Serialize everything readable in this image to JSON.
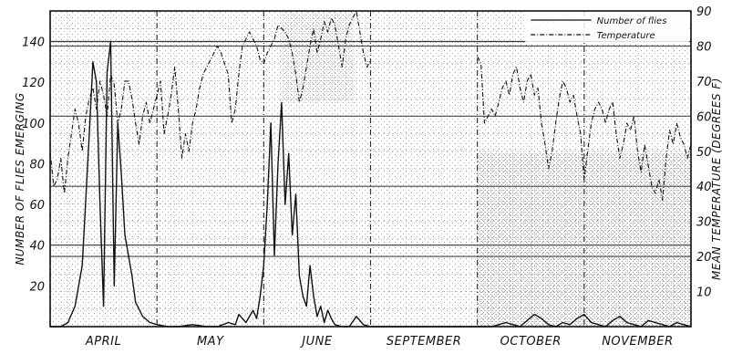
{
  "chart_data": {
    "type": "line",
    "title": "",
    "xlabel": "",
    "ylabel_left": "NUMBER OF FLIES EMERGING",
    "ylabel_right": "MEAN TEMPERATURE (DEGREES F)",
    "months": [
      "APRIL",
      "MAY",
      "JUNE",
      "SEPTEMBER",
      "OCTOBER",
      "NOVEMBER"
    ],
    "y_left_ticks": [
      "20",
      "40",
      "60",
      "80",
      "100",
      "120",
      "140"
    ],
    "y_right_ticks": [
      "10",
      "20",
      "30",
      "40",
      "50",
      "60",
      "70",
      "80",
      "90"
    ],
    "y_left_lim": [
      0,
      155
    ],
    "y_right_lim": [
      0,
      90
    ],
    "grid": true,
    "legend_position": "top-right",
    "legend": [
      "Number of flies",
      "Temperature"
    ],
    "x_unit": "day index across the six months shown (about 30 days per month panel)",
    "series": [
      {
        "name": "Number of flies",
        "axis": "left",
        "style": "solid",
        "segments": [
          {
            "x": [
              0,
              3,
              5,
              7,
              9,
              11,
              12,
              13,
              14,
              15,
              16,
              17,
              18,
              19,
              20,
              21,
              22,
              23,
              24,
              26,
              28,
              30,
              33,
              36,
              40,
              44,
              47,
              50,
              52,
              53,
              55,
              57,
              58,
              59,
              60,
              61,
              62,
              63,
              64,
              65,
              66,
              67,
              68,
              69,
              70,
              71,
              72,
              73,
              74,
              75,
              76,
              77,
              78,
              79,
              80,
              82,
              84,
              86,
              88,
              90
            ],
            "y": [
              0,
              0,
              2,
              10,
              30,
              95,
              130,
              120,
              60,
              10,
              125,
              140,
              20,
              100,
              75,
              45,
              35,
              25,
              12,
              5,
              2,
              1,
              0,
              0,
              1,
              0,
              0,
              2,
              1,
              6,
              2,
              8,
              4,
              15,
              30,
              60,
              100,
              35,
              80,
              110,
              60,
              85,
              45,
              65,
              25,
              15,
              10,
              30,
              15,
              5,
              10,
              2,
              8,
              4,
              1,
              0,
              0,
              5,
              1,
              0
            ]
          },
          {
            "x": [
              90,
              95,
              100,
              105,
              110,
              115,
              118,
              120
            ],
            "y": [
              0,
              0,
              0,
              0,
              0,
              0,
              0,
              0
            ]
          },
          {
            "x": [
              120,
              124,
              126,
              128,
              130,
              132,
              134,
              136,
              138,
              140,
              142,
              144,
              146,
              148,
              150,
              152,
              154,
              156,
              158,
              160,
              162,
              164,
              166,
              168,
              170,
              172,
              174,
              176,
              178,
              180
            ],
            "y": [
              0,
              0,
              1,
              2,
              1,
              0,
              3,
              6,
              4,
              1,
              0,
              2,
              1,
              4,
              6,
              2,
              1,
              0,
              3,
              5,
              2,
              1,
              0,
              3,
              2,
              1,
              0,
              2,
              1,
              0
            ]
          }
        ]
      },
      {
        "name": "Temperature",
        "axis": "right",
        "style": "dashed",
        "segments": [
          {
            "x": [
              0,
              1,
              2,
              3,
              4,
              5,
              6,
              7,
              8,
              9,
              10,
              11,
              12,
              13,
              14,
              15,
              16,
              17,
              18,
              19,
              20,
              21,
              22,
              23,
              24,
              25,
              26,
              27,
              28,
              29,
              30,
              31,
              32,
              33,
              34,
              35,
              36,
              37,
              38,
              39,
              40,
              41,
              42,
              43,
              44,
              45,
              46,
              47,
              48,
              49,
              50,
              51,
              52,
              53,
              54,
              55,
              56,
              57,
              58,
              59,
              60,
              61,
              62,
              63,
              64,
              65,
              66,
              67,
              68,
              69,
              70,
              71,
              72,
              73,
              74,
              75,
              76,
              77,
              78,
              79,
              80,
              81,
              82,
              83,
              84,
              85,
              86,
              87,
              88,
              89,
              90
            ],
            "y": [
              50,
              40,
              42,
              48,
              38,
              48,
              55,
              62,
              58,
              50,
              60,
              65,
              68,
              62,
              70,
              66,
              60,
              72,
              69,
              58,
              62,
              70,
              70,
              65,
              58,
              52,
              60,
              64,
              58,
              62,
              66,
              70,
              55,
              60,
              66,
              74,
              62,
              48,
              55,
              50,
              58,
              62,
              68,
              72,
              74,
              76,
              78,
              80,
              78,
              75,
              72,
              58,
              62,
              72,
              80,
              82,
              84,
              82,
              80,
              76,
              75,
              78,
              80,
              82,
              86,
              85,
              84,
              82,
              78,
              72,
              64,
              68,
              74,
              80,
              85,
              78,
              82,
              87,
              84,
              88,
              86,
              80,
              74,
              82,
              86,
              88,
              90,
              84,
              78,
              74,
              76
            ]
          },
          {
            "x": [
              120,
              121,
              122,
              124,
              125,
              126,
              127,
              128,
              129,
              130,
              131,
              132,
              133,
              134,
              135,
              136,
              137,
              138,
              139,
              140,
              141,
              142,
              143,
              144,
              145,
              146,
              147,
              148,
              149,
              150,
              151,
              152,
              153,
              154,
              155,
              156,
              157,
              158,
              159,
              160,
              161,
              162,
              163,
              164,
              165,
              166,
              167,
              168,
              169,
              170,
              171,
              172,
              173,
              174,
              175,
              176,
              177,
              178,
              179,
              180
            ],
            "y": [
              77,
              75,
              58,
              62,
              60,
              64,
              68,
              70,
              66,
              72,
              74,
              68,
              64,
              70,
              72,
              66,
              68,
              58,
              52,
              45,
              50,
              58,
              65,
              70,
              68,
              64,
              66,
              60,
              55,
              42,
              50,
              58,
              62,
              64,
              62,
              58,
              62,
              64,
              55,
              48,
              52,
              58,
              56,
              60,
              50,
              44,
              52,
              46,
              40,
              38,
              42,
              36,
              48,
              56,
              52,
              58,
              54,
              52,
              48,
              52
            ]
          }
        ]
      }
    ]
  }
}
